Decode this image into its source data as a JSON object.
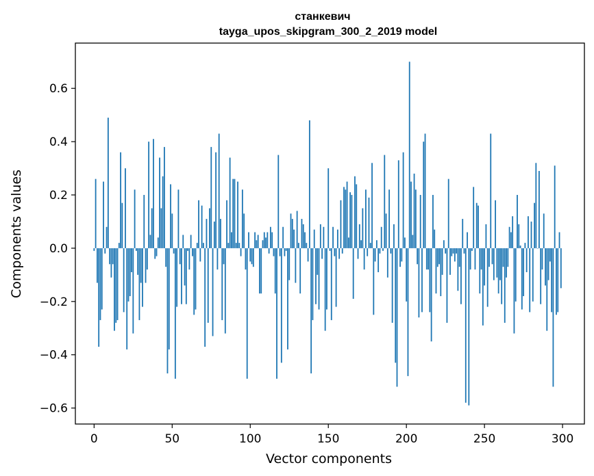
{
  "chart_data": {
    "type": "bar",
    "title": "станкевич",
    "subtitle": "tayga_upos_skipgram_300_2_2019 model",
    "xlabel": "Vector components",
    "ylabel": "Components values",
    "xlim": [
      -12,
      314
    ],
    "ylim": [
      -0.66,
      0.77
    ],
    "xticks": [
      0,
      50,
      100,
      150,
      200,
      250,
      300
    ],
    "xtick_labels": [
      "0",
      "50",
      "100",
      "150",
      "200",
      "250",
      "300"
    ],
    "yticks": [
      -0.6,
      -0.4,
      -0.2,
      0.0,
      0.2,
      0.4,
      0.6
    ],
    "ytick_labels": [
      "−0.6",
      "−0.4",
      "−0.2",
      "0.0",
      "0.2",
      "0.4",
      "0.6"
    ],
    "bar_color": "#1f77b4",
    "grid": false,
    "values": [
      -0.01,
      0.26,
      -0.13,
      -0.37,
      -0.27,
      -0.23,
      0.25,
      -0.02,
      0.08,
      0.49,
      -0.06,
      -0.11,
      -0.06,
      -0.31,
      -0.28,
      -0.27,
      0.02,
      0.36,
      0.17,
      -0.24,
      0.3,
      -0.38,
      -0.2,
      -0.18,
      -0.09,
      -0.32,
      0.22,
      -0.01,
      -0.1,
      -0.27,
      -0.13,
      -0.22,
      0.2,
      -0.13,
      -0.08,
      0.4,
      0.05,
      0.15,
      0.41,
      -0.04,
      -0.03,
      0.04,
      0.34,
      0.15,
      0.27,
      0.38,
      -0.07,
      -0.47,
      -0.38,
      0.24,
      0.13,
      -0.02,
      -0.49,
      -0.22,
      0.22,
      -0.06,
      -0.21,
      0.05,
      -0.14,
      -0.21,
      -0.01,
      -0.08,
      0.05,
      -0.03,
      -0.25,
      -0.23,
      0.02,
      0.18,
      -0.05,
      0.16,
      0.02,
      -0.37,
      0.11,
      -0.28,
      0.15,
      0.38,
      -0.33,
      0.1,
      0.36,
      -0.08,
      0.43,
      0.11,
      -0.27,
      -0.06,
      -0.32,
      0.18,
      0.02,
      0.34,
      0.06,
      0.26,
      0.26,
      0.02,
      0.25,
      0.02,
      -0.03,
      0.22,
      0.13,
      -0.08,
      -0.49,
      0.06,
      -0.05,
      -0.06,
      -0.07,
      0.06,
      0.03,
      0.05,
      -0.17,
      -0.17,
      0.03,
      0.06,
      0.04,
      0.06,
      -0.02,
      0.08,
      0.06,
      -0.03,
      -0.17,
      -0.49,
      0.35,
      -0.03,
      -0.43,
      0.08,
      -0.03,
      -0.01,
      -0.38,
      -0.12,
      0.13,
      0.11,
      0.07,
      -0.13,
      0.14,
      0.02,
      -0.17,
      0.11,
      0.09,
      0.06,
      0.02,
      -0.05,
      0.48,
      -0.47,
      -0.27,
      0.07,
      -0.21,
      -0.1,
      -0.23,
      0.09,
      -0.04,
      0.08,
      -0.31,
      -0.23,
      0.3,
      -0.01,
      -0.27,
      0.08,
      -0.03,
      -0.22,
      0.07,
      -0.04,
      0.18,
      -0.02,
      0.23,
      0.22,
      0.25,
      0.04,
      0.21,
      0.2,
      -0.19,
      0.27,
      0.24,
      -0.04,
      0.09,
      0.03,
      0.15,
      -0.08,
      0.22,
      -0.03,
      0.19,
      0.02,
      0.32,
      -0.25,
      -0.05,
      0.03,
      -0.09,
      -0.02,
      0.08,
      -0.01,
      0.35,
      0.13,
      -0.11,
      0.22,
      -0.02,
      -0.28,
      0.09,
      -0.43,
      -0.52,
      0.33,
      -0.07,
      -0.05,
      0.36,
      0.04,
      -0.2,
      -0.48,
      0.7,
      0.25,
      0.05,
      0.28,
      0.22,
      -0.06,
      -0.26,
      0.2,
      -0.24,
      0.4,
      0.43,
      -0.08,
      -0.08,
      -0.24,
      -0.35,
      0.2,
      0.07,
      -0.17,
      -0.07,
      -0.06,
      -0.18,
      -0.1,
      0.03,
      -0.02,
      -0.28,
      0.26,
      -0.1,
      -0.03,
      -0.02,
      -0.05,
      -0.02,
      -0.16,
      -0.07,
      -0.21,
      0.11,
      -0.02,
      -0.58,
      0.06,
      -0.59,
      -0.08,
      -0.01,
      0.23,
      -0.08,
      0.17,
      0.16,
      -0.17,
      -0.08,
      -0.29,
      -0.14,
      0.09,
      -0.22,
      -0.07,
      0.43,
      -0.06,
      -0.12,
      0.18,
      -0.11,
      -0.17,
      -0.12,
      -0.21,
      -0.07,
      -0.28,
      -0.11,
      -0.07,
      0.08,
      0.06,
      0.12,
      -0.32,
      -0.2,
      0.2,
      0.09,
      0.01,
      -0.23,
      -0.18,
      0.02,
      -0.09,
      0.12,
      -0.24,
      0.1,
      -0.2,
      0.17,
      0.32,
      0.0,
      0.29,
      -0.21,
      -0.08,
      0.13,
      -0.14,
      -0.31,
      -0.12,
      -0.05,
      -0.24,
      -0.52,
      0.31,
      -0.25,
      -0.24,
      0.06,
      -0.15
    ]
  }
}
